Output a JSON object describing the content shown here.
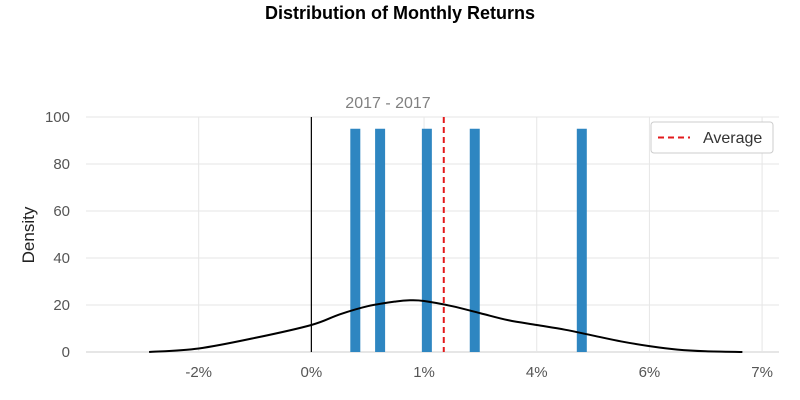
{
  "chart_data": {
    "type": "bar",
    "title": "Distribution of Monthly Returns",
    "subtitle": "2017 - 2017",
    "xlabel": "",
    "ylabel": "Density",
    "ylim": [
      0,
      100
    ],
    "yticks": [
      0,
      20,
      40,
      60,
      80,
      100
    ],
    "xtick_labels": [
      "-2%",
      "0%",
      "1%",
      "4%",
      "6%",
      "7%"
    ],
    "grid": true,
    "legend": {
      "placement": "top-right",
      "entries": [
        "Average"
      ]
    },
    "series": [
      {
        "type": "histogram",
        "color": "#2e86c1",
        "bars": [
          {
            "x": 0.78,
            "value": 95
          },
          {
            "x": 1.22,
            "value": 95
          },
          {
            "x": 2.05,
            "value": 95
          },
          {
            "x": 2.9,
            "value": 95
          },
          {
            "x": 4.8,
            "value": 95
          }
        ]
      },
      {
        "type": "line",
        "color": "#000000",
        "points": [
          [
            -2.88,
            0
          ],
          [
            -2.0,
            1.5
          ],
          [
            -1.0,
            6
          ],
          [
            0.0,
            11.5
          ],
          [
            0.5,
            16
          ],
          [
            1.0,
            19.5
          ],
          [
            1.5,
            21.5
          ],
          [
            1.75,
            22
          ],
          [
            2.0,
            21.7
          ],
          [
            2.5,
            19.5
          ],
          [
            3.0,
            16.5
          ],
          [
            3.5,
            13.5
          ],
          [
            4.0,
            11.5
          ],
          [
            4.5,
            9.5
          ],
          [
            5.0,
            7
          ],
          [
            5.5,
            4.5
          ],
          [
            6.0,
            2.5
          ],
          [
            6.5,
            1
          ],
          [
            7.0,
            0.3
          ],
          [
            7.65,
            0
          ]
        ]
      },
      {
        "type": "vline",
        "name": "Average",
        "color": "#e31a1c",
        "x": 2.35,
        "style": "dashed"
      },
      {
        "type": "vline",
        "color": "#000000",
        "x": 0,
        "style": "solid"
      }
    ]
  }
}
